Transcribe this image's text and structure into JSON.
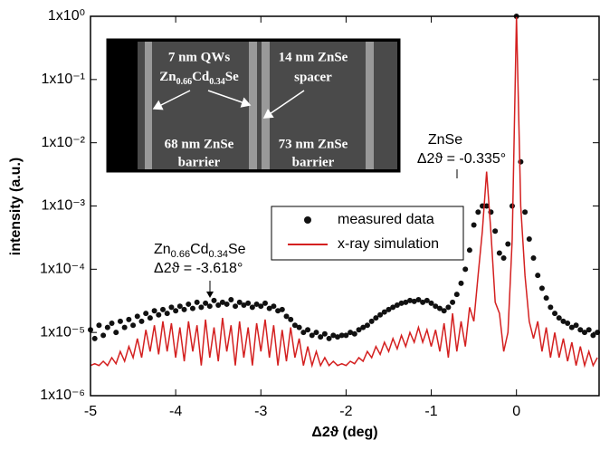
{
  "chart_data": {
    "type": "scatter-line",
    "log_y": true,
    "xlabel": "Δ2ϑ (deg)",
    "ylabel": "intensity (a.u.)",
    "xlim": [
      -5,
      0.97
    ],
    "ylim": [
      1e-06,
      1
    ],
    "xticks": [
      -5,
      -4,
      -3,
      -2,
      -1,
      0
    ],
    "yticks": [
      {
        "value": 1e-06,
        "label": "1x10⁻⁶"
      },
      {
        "value": 1e-05,
        "label": "1x10⁻⁵"
      },
      {
        "value": 0.0001,
        "label": "1x10⁻⁴"
      },
      {
        "value": 0.001,
        "label": "1x10⁻³"
      },
      {
        "value": 0.01,
        "label": "1x10⁻²"
      },
      {
        "value": 0.1,
        "label": "1x10⁻¹"
      },
      {
        "value": 1,
        "label": "1x10⁰"
      }
    ],
    "legend": "center-right",
    "x": [
      -5,
      -4.95,
      -4.9,
      -4.85,
      -4.8,
      -4.75,
      -4.7,
      -4.65,
      -4.6,
      -4.55,
      -4.5,
      -4.45,
      -4.4,
      -4.35,
      -4.3,
      -4.25,
      -4.2,
      -4.15,
      -4.1,
      -4.05,
      -4,
      -3.95,
      -3.9,
      -3.85,
      -3.8,
      -3.75,
      -3.7,
      -3.65,
      -3.6,
      -3.55,
      -3.5,
      -3.45,
      -3.4,
      -3.35,
      -3.3,
      -3.25,
      -3.2,
      -3.15,
      -3.1,
      -3.05,
      -3,
      -2.95,
      -2.9,
      -2.85,
      -2.8,
      -2.75,
      -2.7,
      -2.65,
      -2.6,
      -2.55,
      -2.5,
      -2.45,
      -2.4,
      -2.35,
      -2.3,
      -2.25,
      -2.2,
      -2.15,
      -2.1,
      -2.05,
      -2,
      -1.95,
      -1.9,
      -1.85,
      -1.8,
      -1.75,
      -1.7,
      -1.65,
      -1.6,
      -1.55,
      -1.5,
      -1.45,
      -1.4,
      -1.35,
      -1.3,
      -1.25,
      -1.2,
      -1.15,
      -1.1,
      -1.05,
      -1,
      -0.95,
      -0.9,
      -0.85,
      -0.8,
      -0.75,
      -0.7,
      -0.65,
      -0.6,
      -0.55,
      -0.5,
      -0.45,
      -0.4,
      -0.35,
      -0.3,
      -0.25,
      -0.2,
      -0.15,
      -0.1,
      -0.05,
      0,
      0.05,
      0.1,
      0.15,
      0.2,
      0.25,
      0.3,
      0.35,
      0.4,
      0.45,
      0.5,
      0.55,
      0.6,
      0.65,
      0.7,
      0.75,
      0.8,
      0.85,
      0.9,
      0.95
    ],
    "series": [
      {
        "name": "measured data",
        "kind": "scatter",
        "color": "#111111",
        "values": [
          1.1e-05,
          8e-06,
          1.3e-05,
          9e-06,
          1.2e-05,
          1.4e-05,
          1e-05,
          1.5e-05,
          1.2e-05,
          1.6e-05,
          1.3e-05,
          1.8e-05,
          1.5e-05,
          2e-05,
          1.7e-05,
          2.2e-05,
          1.9e-05,
          2.3e-05,
          2e-05,
          2.5e-05,
          2.2e-05,
          2.6e-05,
          2.3e-05,
          2.8e-05,
          2.4e-05,
          3e-05,
          2.5e-05,
          2.9e-05,
          2.6e-05,
          3.2e-05,
          2.7e-05,
          3e-05,
          2.8e-05,
          3.3e-05,
          2.6e-05,
          3e-05,
          2.7e-05,
          2.9e-05,
          2.5e-05,
          2.8e-05,
          2.6e-05,
          2.9e-05,
          2.4e-05,
          2.6e-05,
          2.2e-05,
          2.3e-05,
          1.8e-05,
          1.6e-05,
          1.3e-05,
          1.2e-05,
          1e-05,
          1.1e-05,
          9e-06,
          1e-05,
          8.5e-06,
          9.5e-06,
          8e-06,
          9e-06,
          8.5e-06,
          9e-06,
          9e-06,
          1e-05,
          9.5e-06,
          1.1e-05,
          1.2e-05,
          1.3e-05,
          1.5e-05,
          1.7e-05,
          1.9e-05,
          2.1e-05,
          2.3e-05,
          2.5e-05,
          2.7e-05,
          2.9e-05,
          3e-05,
          3.2e-05,
          3.1e-05,
          3.3e-05,
          3e-05,
          3.2e-05,
          2.9e-05,
          2.6e-05,
          2.4e-05,
          2.2e-05,
          2.5e-05,
          3e-05,
          4e-05,
          6e-05,
          0.0001,
          0.0002,
          0.0005,
          0.0008,
          0.001,
          0.001,
          0.0008,
          0.0004,
          0.00018,
          0.00015,
          0.00025,
          0.001,
          1,
          0.005,
          0.0008,
          0.0003,
          0.00015,
          8e-05,
          5e-05,
          3.5e-05,
          2.5e-05,
          2e-05,
          1.7e-05,
          1.5e-05,
          1.4e-05,
          1.2e-05,
          1.3e-05,
          1.1e-05,
          1e-05,
          1.1e-05,
          9e-06,
          1e-05
        ]
      },
      {
        "name": "x-ray simulation",
        "kind": "line",
        "color": "#d42020",
        "values": [
          3e-06,
          3.2e-06,
          3e-06,
          3.5e-06,
          3e-06,
          4e-06,
          3.2e-06,
          5e-06,
          3.5e-06,
          6e-06,
          4e-06,
          8e-06,
          4e-06,
          1.1e-05,
          5e-06,
          1.3e-05,
          4.5e-06,
          1.5e-05,
          5e-06,
          1.4e-05,
          4e-06,
          1.2e-05,
          3.5e-06,
          1.5e-05,
          5e-06,
          1.3e-05,
          3e-06,
          1.6e-05,
          4e-06,
          1.2e-05,
          3.5e-06,
          1.7e-05,
          5e-06,
          1.3e-05,
          3e-06,
          1.5e-05,
          4e-06,
          1.2e-05,
          3e-06,
          1.4e-05,
          5e-06,
          1.6e-05,
          4e-06,
          1.3e-05,
          3e-06,
          1.1e-05,
          3.5e-06,
          1.2e-05,
          4e-06,
          8e-06,
          3e-06,
          6e-06,
          3e-06,
          5e-06,
          3e-06,
          4e-06,
          3e-06,
          3.5e-06,
          3e-06,
          3.2e-06,
          3e-06,
          3.5e-06,
          3.2e-06,
          4e-06,
          3.5e-06,
          5e-06,
          4e-06,
          6e-06,
          4.5e-06,
          7e-06,
          5e-06,
          8e-06,
          5.5e-06,
          9e-06,
          6e-06,
          1e-05,
          7e-06,
          1.2e-05,
          7e-06,
          1.1e-05,
          6e-06,
          1.1e-05,
          5e-06,
          1.4e-05,
          4e-06,
          2e-05,
          5e-06,
          1.5e-05,
          6e-06,
          2.5e-05,
          1.5e-05,
          8e-05,
          0.0004,
          0.0035,
          0.0004,
          3e-05,
          2e-05,
          5e-06,
          1e-05,
          0.0003,
          1,
          0.001,
          8e-05,
          1.5e-05,
          8e-06,
          1.5e-05,
          5e-06,
          1.2e-05,
          4e-06,
          1e-05,
          4e-06,
          8e-06,
          3.5e-06,
          7e-06,
          3e-06,
          6e-06,
          3e-06,
          5e-06,
          3e-06,
          4e-06
        ]
      }
    ],
    "annotations": [
      {
        "text": "ZnSe"
      },
      {
        "text": "Δ2ϑ = -0.335°"
      },
      {
        "parts": [
          "Zn",
          "0.66",
          "Cd",
          "0.34",
          "Se"
        ]
      },
      {
        "text": "Δ2ϑ = -3.618°"
      }
    ],
    "inset": {
      "labels": [
        "7 nm QWs",
        "14 nm ZnSe",
        "spacer",
        "68 nm ZnSe",
        "barrier",
        "73 nm ZnSe",
        "barrier"
      ],
      "formula": [
        "Zn",
        "0.66",
        "Cd",
        "0.34",
        "Se"
      ]
    }
  }
}
